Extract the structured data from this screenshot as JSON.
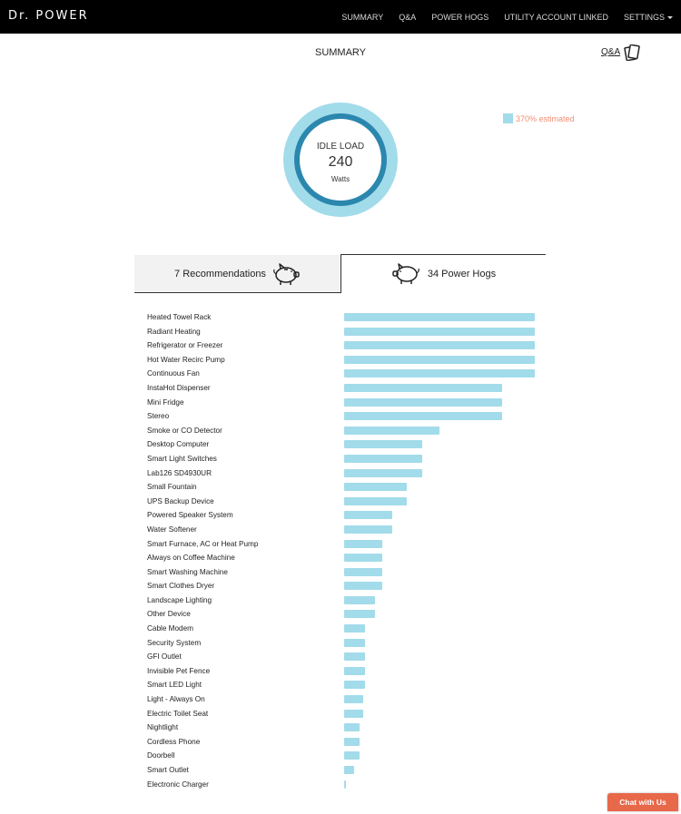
{
  "brand": "Dr. POWER",
  "nav": {
    "items": [
      "SUMMARY",
      "Q&A",
      "POWER HOGS",
      "UTILITY ACCOUNT LINKED"
    ],
    "settings": "SETTINGS"
  },
  "page": {
    "title": "SUMMARY",
    "qa_link": "Q&A"
  },
  "idle_load": {
    "title": "IDLE LOAD",
    "value": "240",
    "unit": "Watts"
  },
  "legend": {
    "text": "370% estimated",
    "color": "#a2dbea"
  },
  "tabs": {
    "recommendations": "7 Recommendations",
    "power_hogs": "34 Power Hogs"
  },
  "chart_data": {
    "type": "bar",
    "orientation": "horizontal",
    "max_value": 1,
    "categories": [
      "Heated Towel Rack",
      "Radiant Heating",
      "Refrigerator or Freezer",
      "Hot Water Recirc Pump",
      "Continuous Fan",
      "InstaHot Dispenser",
      "Mini Fridge",
      "Stereo",
      "Smoke or CO Detector",
      "Desktop Computer",
      "Smart Light Switches",
      "Lab126 SD4930UR",
      "Small Fountain",
      "UPS Backup Device",
      "Powered Speaker System",
      "Water Softener",
      "Smart Furnace, AC or Heat Pump",
      "Always on Coffee Machine",
      "Smart Washing Machine",
      "Smart Clothes Dryer",
      "Landscape Lighting",
      "Other Device",
      "Cable Modem",
      "Security System",
      "GFI Outlet",
      "Invisible Pet Fence",
      "Smart LED Light",
      "Light - Always On",
      "Electric Toilet Seat",
      "Nightlight",
      "Cordless Phone",
      "Doorbell",
      "Smart Outlet",
      "Electronic Charger"
    ],
    "values": [
      1.0,
      1.0,
      1.0,
      1.0,
      1.0,
      0.83,
      0.83,
      0.83,
      0.5,
      0.41,
      0.41,
      0.41,
      0.33,
      0.33,
      0.25,
      0.25,
      0.2,
      0.2,
      0.2,
      0.2,
      0.16,
      0.16,
      0.11,
      0.11,
      0.11,
      0.11,
      0.11,
      0.1,
      0.1,
      0.08,
      0.08,
      0.08,
      0.05,
      0.01
    ],
    "color": "#a2dbea"
  },
  "chat": {
    "label": "Chat with Us",
    "color": "#e8684a"
  }
}
